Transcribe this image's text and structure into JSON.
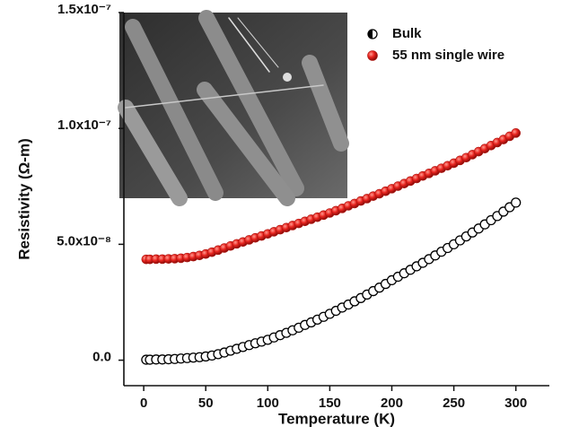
{
  "chart_data": {
    "type": "scatter",
    "xlabel": "Temperature (K)",
    "ylabel": "Resistivity (Ω-m)",
    "xlim": [
      -16,
      327
    ],
    "ylim": [
      -1.1e-08,
      1.5e-07
    ],
    "xticks": [
      0,
      50,
      100,
      150,
      200,
      250,
      300
    ],
    "yticks": [
      {
        "value": 0,
        "label": "0.0"
      },
      {
        "value": 5e-08,
        "label": "5.0x10⁻⁸"
      },
      {
        "value": 1e-07,
        "label": "1.0x10⁻⁷"
      },
      {
        "value": 1.5e-07,
        "label": "1.5x10⁻⁷"
      }
    ],
    "grid": false,
    "legend": "upper right",
    "x": [
      2,
      5,
      10,
      15,
      20,
      25,
      30,
      35,
      40,
      45,
      50,
      55,
      60,
      65,
      70,
      75,
      80,
      85,
      90,
      95,
      100,
      105,
      110,
      115,
      120,
      125,
      130,
      135,
      140,
      145,
      150,
      155,
      160,
      165,
      170,
      175,
      180,
      185,
      190,
      195,
      200,
      205,
      210,
      215,
      220,
      225,
      230,
      235,
      240,
      245,
      250,
      255,
      260,
      265,
      270,
      275,
      280,
      285,
      290,
      295,
      300
    ],
    "series": [
      {
        "name": "Bulk",
        "color": "#000000",
        "values": [
          2e-10,
          2e-10,
          3e-10,
          3e-10,
          4e-10,
          5e-10,
          7e-10,
          9e-10,
          1.1e-09,
          1.3e-09,
          1.6e-09,
          2e-09,
          2.6e-09,
          3.3e-09,
          4.1e-09,
          4.9e-09,
          5.7e-09,
          6.5e-09,
          7.3e-09,
          8e-09,
          8.8e-09,
          9.8e-09,
          1.08e-08,
          1.18e-08,
          1.29e-08,
          1.4e-08,
          1.52e-08,
          1.63e-08,
          1.75e-08,
          1.87e-08,
          2e-08,
          2.13e-08,
          2.27e-08,
          2.4e-08,
          2.54e-08,
          2.68e-08,
          2.83e-08,
          2.98e-08,
          3.13e-08,
          3.29e-08,
          3.45e-08,
          3.6e-08,
          3.75e-08,
          3.9e-08,
          4.05e-08,
          4.2e-08,
          4.36e-08,
          4.52e-08,
          4.68e-08,
          4.84e-08,
          5e-08,
          5.17e-08,
          5.34e-08,
          5.51e-08,
          5.68e-08,
          5.86e-08,
          6.04e-08,
          6.22e-08,
          6.41e-08,
          6.6e-08,
          6.8e-08
        ]
      },
      {
        "name": "55 nm single wire",
        "color": "#e8231e",
        "values": [
          4.35e-08,
          4.35e-08,
          4.36e-08,
          4.36e-08,
          4.37e-08,
          4.38e-08,
          4.4e-08,
          4.43e-08,
          4.47e-08,
          4.52e-08,
          4.58e-08,
          4.66e-08,
          4.75e-08,
          4.84e-08,
          4.93e-08,
          5.02e-08,
          5.1e-08,
          5.19e-08,
          5.28e-08,
          5.36e-08,
          5.45e-08,
          5.54e-08,
          5.63e-08,
          5.72e-08,
          5.81e-08,
          5.9e-08,
          5.99e-08,
          6.08e-08,
          6.17e-08,
          6.26e-08,
          6.35e-08,
          6.45e-08,
          6.55e-08,
          6.66e-08,
          6.76e-08,
          6.87e-08,
          6.97e-08,
          7.08e-08,
          7.18e-08,
          7.29e-08,
          7.4e-08,
          7.51e-08,
          7.62e-08,
          7.73e-08,
          7.84e-08,
          7.95e-08,
          8.06e-08,
          8.17e-08,
          8.28e-08,
          8.39e-08,
          8.5e-08,
          8.62e-08,
          8.74e-08,
          8.87e-08,
          9e-08,
          9.13e-08,
          9.26e-08,
          9.39e-08,
          9.52e-08,
          9.66e-08,
          9.8e-08
        ]
      }
    ]
  }
}
